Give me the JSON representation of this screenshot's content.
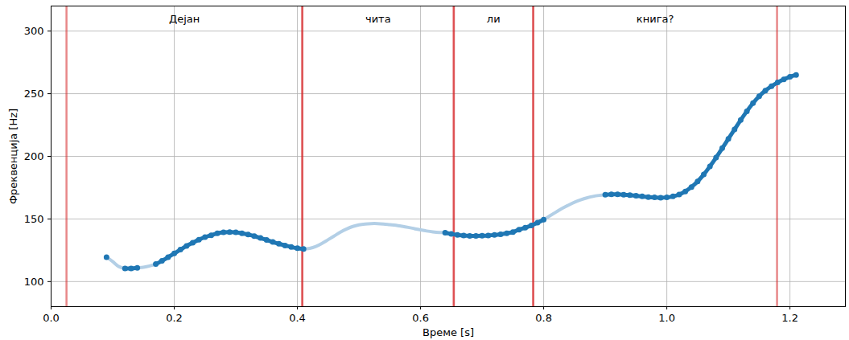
{
  "chart_data": {
    "type": "line",
    "x_label": "Време [s]",
    "y_label": "Фреквенција [Hz]",
    "xlim": [
      0,
      1.29
    ],
    "ylim": [
      80,
      320
    ],
    "xticks": [
      {
        "value": 0,
        "label": "0.0"
      },
      0.2,
      0.4,
      0.6,
      0.8,
      {
        "value": 1,
        "label": "1.0"
      },
      1.2
    ],
    "yticks": [
      100,
      150,
      200,
      250,
      300
    ],
    "grid": true,
    "segments": {
      "color": "#d62728",
      "items": [
        {
          "label": "Дејан",
          "start": 0.025,
          "end": 0.408
        },
        {
          "label": "чита",
          "start": 0.408,
          "end": 0.654
        },
        {
          "label": "ли",
          "start": 0.654,
          "end": 0.783
        },
        {
          "label": "книга?",
          "start": 0.783,
          "end": 1.179
        }
      ]
    },
    "x": [
      0.09,
      0.1,
      0.11,
      0.12,
      0.13,
      0.14,
      0.15,
      0.16,
      0.17,
      0.18,
      0.19,
      0.2,
      0.21,
      0.22,
      0.23,
      0.24,
      0.25,
      0.26,
      0.27,
      0.28,
      0.29,
      0.3,
      0.31,
      0.32,
      0.33,
      0.34,
      0.35,
      0.36,
      0.37,
      0.38,
      0.39,
      0.4,
      0.41,
      0.42,
      0.43,
      0.44,
      0.45,
      0.46,
      0.47,
      0.48,
      0.49,
      0.5,
      0.51,
      0.52,
      0.53,
      0.54,
      0.55,
      0.56,
      0.57,
      0.58,
      0.59,
      0.6,
      0.61,
      0.62,
      0.63,
      0.64,
      0.65,
      0.66,
      0.67,
      0.68,
      0.69,
      0.7,
      0.71,
      0.72,
      0.73,
      0.74,
      0.75,
      0.76,
      0.77,
      0.78,
      0.79,
      0.8,
      0.81,
      0.82,
      0.83,
      0.84,
      0.85,
      0.86,
      0.87,
      0.88,
      0.89,
      0.9,
      0.91,
      0.92,
      0.93,
      0.94,
      0.95,
      0.96,
      0.97,
      0.98,
      0.99,
      1.0,
      1.01,
      1.02,
      1.03,
      1.04,
      1.05,
      1.06,
      1.07,
      1.08,
      1.09,
      1.1,
      1.11,
      1.12,
      1.13,
      1.14,
      1.15,
      1.16,
      1.17,
      1.18,
      1.19,
      1.2,
      1.21
    ],
    "series": [
      {
        "type": "line",
        "color": "#b3cfe6",
        "values": [
          119.5,
          116,
          112,
          110.5,
          110.5,
          111,
          111.5,
          112.5,
          114,
          116.5,
          119.5,
          122.5,
          125.5,
          128.5,
          131,
          133.5,
          135.5,
          137,
          138.5,
          139.3,
          139.5,
          139.3,
          138.6,
          137.6,
          136.3,
          134.8,
          133.2,
          131.6,
          130.2,
          128.8,
          127.6,
          126.7,
          126,
          126.5,
          128,
          130.5,
          133.5,
          136.5,
          139.5,
          142,
          144,
          145.3,
          146,
          146.3,
          146.3,
          146,
          145.5,
          145,
          144.2,
          143.3,
          142.3,
          141.3,
          140.4,
          139.7,
          139.2,
          139,
          138,
          137.3,
          136.8,
          136.5,
          136.5,
          136.6,
          136.8,
          137.2,
          137.8,
          138.6,
          139.5,
          141.5,
          143,
          144.8,
          147,
          149.5,
          152.5,
          155.5,
          158.5,
          161,
          163.3,
          165.2,
          166.8,
          168,
          168.8,
          169.3,
          169.6,
          169.6,
          169.4,
          169,
          168.5,
          168,
          167.5,
          167.2,
          167,
          167.2,
          168,
          169.5,
          172,
          175.5,
          180,
          185.5,
          192,
          199,
          206.5,
          214,
          221.5,
          229,
          236,
          242.5,
          248,
          252.5,
          256,
          259,
          261.5,
          263.5,
          265
        ]
      },
      {
        "type": "line",
        "marker": "circle",
        "color": "#1f77b4",
        "values": [
          119.5,
          null,
          null,
          110.5,
          110.5,
          111,
          null,
          null,
          114,
          116.5,
          119.5,
          122.5,
          125.5,
          128.5,
          131,
          133.5,
          135.5,
          137,
          138.5,
          139.3,
          139.5,
          139.3,
          138.6,
          137.6,
          136.3,
          134.8,
          133.2,
          131.6,
          130.2,
          128.8,
          127.6,
          126.7,
          126,
          null,
          null,
          null,
          null,
          null,
          null,
          null,
          null,
          null,
          null,
          null,
          null,
          null,
          null,
          null,
          null,
          null,
          null,
          null,
          null,
          null,
          null,
          139,
          138,
          137.3,
          136.8,
          136.5,
          136.5,
          136.6,
          136.8,
          137.2,
          137.8,
          138.6,
          139.5,
          141.5,
          143,
          144.8,
          147,
          149.5,
          null,
          null,
          null,
          null,
          null,
          null,
          null,
          null,
          null,
          169.3,
          169.6,
          169.6,
          169.4,
          169,
          168.5,
          168,
          167.5,
          167.2,
          167,
          167.2,
          168,
          169.5,
          172,
          175.5,
          180,
          185.5,
          192,
          199,
          206.5,
          214,
          221.5,
          229,
          236,
          242.5,
          248,
          252.5,
          256,
          259,
          261.5,
          263.5,
          265
        ]
      }
    ]
  }
}
